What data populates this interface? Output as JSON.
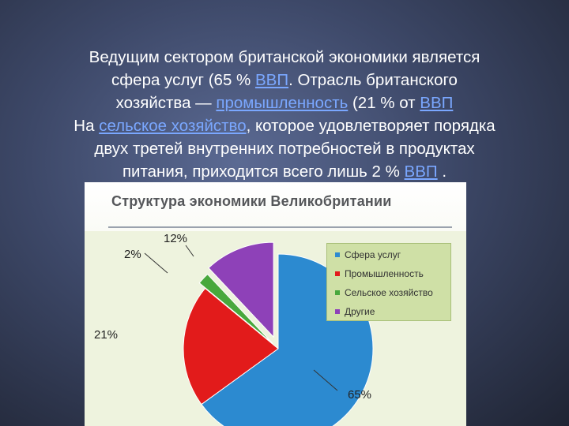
{
  "slide": {
    "lines": [
      [
        {
          "t": "Ведущим сектором британской экономики является"
        }
      ],
      [
        {
          "t": "сфера услуг (65 % "
        },
        {
          "t": "ВВП",
          "link": true
        },
        {
          "t": ". Отрасль британского"
        }
      ],
      [
        {
          "t": "хозяйства — "
        },
        {
          "t": "промышленность",
          "link": true
        },
        {
          "t": " (21 % от "
        },
        {
          "t": "ВВП",
          "link": true
        }
      ],
      [
        {
          "t": "На "
        },
        {
          "t": "сельское хозяйство",
          "link": true
        },
        {
          "t": ", которое удовлетворяет порядка"
        }
      ],
      [
        {
          "t": "двух третей внутренних потребностей в продуктах"
        }
      ],
      [
        {
          "t": "питания, приходится всего лишь 2 % "
        },
        {
          "t": "ВВП",
          "link": true
        },
        {
          "t": " ."
        }
      ]
    ]
  },
  "chart_data": {
    "type": "pie",
    "title": "Структура экономики Великобритании",
    "categories": [
      "Сфера услуг",
      "Промышленность",
      "Сельское хозяйство",
      "Другие"
    ],
    "values": [
      65,
      21,
      2,
      12
    ],
    "data_labels": [
      "65%",
      "21%",
      "2%",
      "12%"
    ],
    "colors": [
      "#2c8ad0",
      "#e21b1b",
      "#48a83c",
      "#8e41b8"
    ],
    "legend_position": "right",
    "exploded": true
  }
}
